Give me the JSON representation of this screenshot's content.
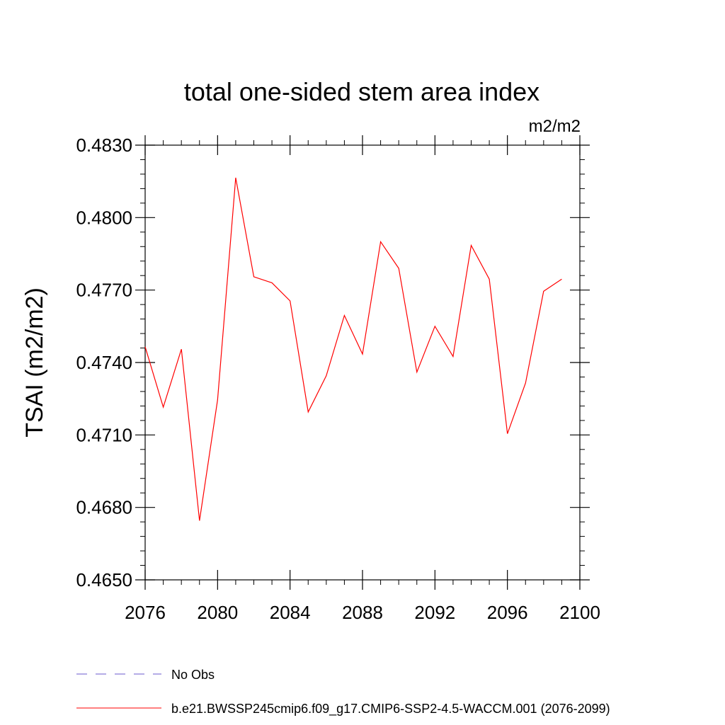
{
  "chart_data": {
    "type": "line",
    "title": "total one-sided stem area index",
    "units_label": "m2/m2",
    "xlabel": "",
    "ylabel": "TSAI  (m2/m2)",
    "xlim": [
      2076,
      2100
    ],
    "ylim": [
      0.465,
      0.483
    ],
    "x_ticks": [
      2076,
      2080,
      2084,
      2088,
      2092,
      2096,
      2100
    ],
    "x_tick_labels": [
      "2076",
      "2080",
      "2084",
      "2088",
      "2092",
      "2096",
      "2100"
    ],
    "y_ticks": [
      0.465,
      0.468,
      0.471,
      0.474,
      0.477,
      0.48,
      0.483
    ],
    "y_tick_labels": [
      "0.4650",
      "0.4680",
      "0.4710",
      "0.4740",
      "0.4770",
      "0.4800",
      "0.4830"
    ],
    "grid": false,
    "legend_position": "bottom",
    "series": [
      {
        "name": "b.e21.BWSSP245cmip6.f09_g17.CMIP6-SSP2-4.5-WACCM.001 (2076-2099)",
        "color": "#ff0000",
        "dash": "solid",
        "x": [
          2076,
          2077,
          2078,
          2079,
          2080,
          2081,
          2082,
          2083,
          2084,
          2085,
          2086,
          2087,
          2088,
          2089,
          2090,
          2091,
          2092,
          2093,
          2094,
          2095,
          2096,
          2097,
          2098,
          2099
        ],
        "values": [
          0.47465,
          0.47215,
          0.47455,
          0.46745,
          0.47245,
          0.48165,
          0.47755,
          0.4773,
          0.47655,
          0.47195,
          0.47345,
          0.47595,
          0.47435,
          0.479,
          0.4779,
          0.4736,
          0.4755,
          0.47425,
          0.47885,
          0.47745,
          0.47105,
          0.47315,
          0.47695,
          0.47745
        ]
      },
      {
        "name": "No Obs",
        "color": "#6a5acd",
        "dash": "dashed",
        "x": [],
        "values": []
      }
    ]
  }
}
